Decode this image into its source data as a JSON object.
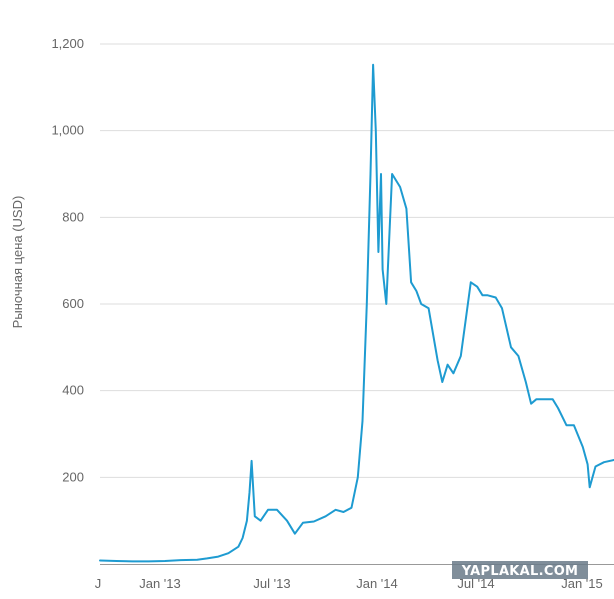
{
  "colors": {
    "series": "#1e9bd1",
    "grid": "#dddddd",
    "axis": "#999999",
    "text": "#666666",
    "watermark_bg": "#6a7a88",
    "watermark_text": "#ffffff"
  },
  "watermark": "YAPLAKAL.COM",
  "chart_data": {
    "type": "line",
    "title": "",
    "xlabel": "",
    "ylabel": "Рыночная цена (USD)",
    "x_ticks": [
      "J",
      "Jan '13",
      "Jul '13",
      "Jan '14",
      "Jul '14",
      "Jan '15"
    ],
    "y_ticks": [
      "200",
      "400",
      "600",
      "800",
      "1,000",
      "1,200"
    ],
    "ylim": [
      0,
      1200
    ],
    "xlim": [
      "2012-07-01",
      "2015-03-01"
    ],
    "grid": "horizontal",
    "legend": "none",
    "series": [
      {
        "x": [
          "2012-07-01",
          "2012-08-01",
          "2012-09-01",
          "2012-10-01",
          "2012-11-01",
          "2012-12-01",
          "2013-01-01",
          "2013-01-20",
          "2013-02-10",
          "2013-03-01",
          "2013-03-20",
          "2013-03-28",
          "2013-04-05",
          "2013-04-10",
          "2013-04-14",
          "2013-04-20",
          "2013-05-01",
          "2013-05-15",
          "2013-06-01",
          "2013-06-20",
          "2013-07-05",
          "2013-07-20",
          "2013-08-10",
          "2013-09-01",
          "2013-09-20",
          "2013-10-05",
          "2013-10-20",
          "2013-11-01",
          "2013-11-10",
          "2013-11-18",
          "2013-11-25",
          "2013-11-30",
          "2013-12-05",
          "2013-12-10",
          "2013-12-15",
          "2013-12-18",
          "2013-12-25",
          "2014-01-05",
          "2014-01-20",
          "2014-02-01",
          "2014-02-10",
          "2014-02-20",
          "2014-03-01",
          "2014-03-15",
          "2014-04-01",
          "2014-04-10",
          "2014-04-20",
          "2014-05-01",
          "2014-05-15",
          "2014-05-25",
          "2014-06-03",
          "2014-06-15",
          "2014-06-25",
          "2014-07-05",
          "2014-07-20",
          "2014-08-01",
          "2014-08-18",
          "2014-09-01",
          "2014-09-15",
          "2014-09-25",
          "2014-10-05",
          "2014-10-20",
          "2014-11-05",
          "2014-11-15",
          "2014-12-01",
          "2014-12-15",
          "2015-01-01",
          "2015-01-10",
          "2015-01-14",
          "2015-01-25",
          "2015-02-10",
          "2015-03-01"
        ],
        "y": [
          8,
          7,
          6,
          6,
          7,
          9,
          10,
          13,
          17,
          25,
          40,
          60,
          100,
          165,
          238,
          110,
          100,
          125,
          125,
          100,
          70,
          95,
          98,
          110,
          125,
          120,
          130,
          200,
          330,
          600,
          900,
          1152,
          1000,
          720,
          900,
          680,
          600,
          900,
          870,
          820,
          650,
          630,
          600,
          590,
          470,
          420,
          460,
          440,
          480,
          570,
          650,
          640,
          620,
          620,
          615,
          590,
          500,
          480,
          420,
          370,
          380,
          380,
          380,
          360,
          320,
          320,
          270,
          230,
          177,
          225,
          235,
          240
        ]
      }
    ]
  }
}
